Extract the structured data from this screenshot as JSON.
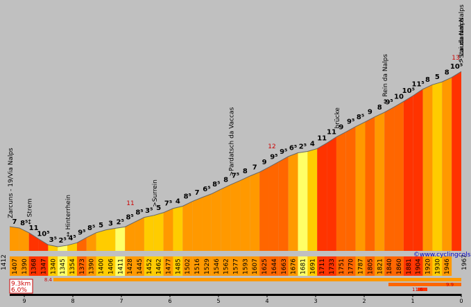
{
  "chart_data": {
    "type": "area",
    "title": "",
    "xlabel": "",
    "ylabel": "",
    "x_ticks": [
      "9",
      "8",
      "7",
      "6",
      "5",
      "4",
      "3",
      "2",
      "1",
      "0"
    ],
    "start_altitude": "1412",
    "end_altitude": "1967",
    "distance_label": "9.3km",
    "average_grade_label": "6.0%",
    "credit": "©www.cyclingcols.com",
    "altitudes": [
      "1407",
      "1390",
      "1368",
      "1347",
      "1340",
      "1345",
      "1354",
      "1373",
      "1390",
      "1400",
      "1406",
      "1411",
      "1428",
      "1445",
      "1452",
      "1462",
      "1477",
      "1485",
      "1502",
      "1516",
      "1529",
      "1546",
      "1562",
      "1577",
      "1593",
      "1607",
      "1625",
      "1644",
      "1663",
      "1676",
      "1681",
      "1691",
      "1711",
      "1733",
      "1751",
      "1770",
      "1787",
      "1805",
      "1821",
      "1840",
      "1860",
      "1881",
      "1904",
      "1920",
      "1930",
      "1946"
    ],
    "grades": [
      "7",
      "8⁵",
      "11",
      "10⁵",
      "3⁵",
      "2⁵",
      "4⁵",
      "9⁵",
      "8⁵",
      "5",
      "3",
      "2⁵",
      "8⁵",
      "8⁵",
      "3⁵",
      "5",
      "7⁵",
      "4",
      "8⁵",
      "7",
      "6⁵",
      "8⁵",
      "8",
      "7⁵",
      "8",
      "7",
      "9",
      "9⁵",
      "9⁵",
      "6⁵",
      "2⁵",
      "4",
      "11",
      "11",
      "9",
      "9⁵",
      "8⁵",
      "9",
      "8",
      "9⁵",
      "10",
      "10⁵",
      "11⁵",
      "8",
      "5",
      "8",
      "10⁵"
    ],
    "places": [
      "Zarcuns - 19/Via Nalps",
      "↔ Strem",
      "↔ Hinterrhein",
      ">Surrein",
      ">Pardatsch da Vaccas",
      "brücke",
      "↔ Rein da Nalps",
      ">Staudamm Nalps",
      "^ Lai da Nalps"
    ],
    "max_grade_labels": [
      "11",
      "12",
      "13"
    ],
    "max_grade_bars": [
      {
        "from_km": 8.4,
        "to_km": 0.0,
        "label": "8.4"
      },
      {
        "from_km": 1.5,
        "to_km": 0.0,
        "label": "9.9"
      },
      {
        "from_km": 0.9,
        "to_km": 0.7,
        "label": "11.6"
      }
    ],
    "colors": {
      "flat": "#ffff66",
      "easy": "#ffcc00",
      "moderate": "#ff9900",
      "steep": "#ff6600",
      "very_steep": "#ff3300"
    }
  }
}
